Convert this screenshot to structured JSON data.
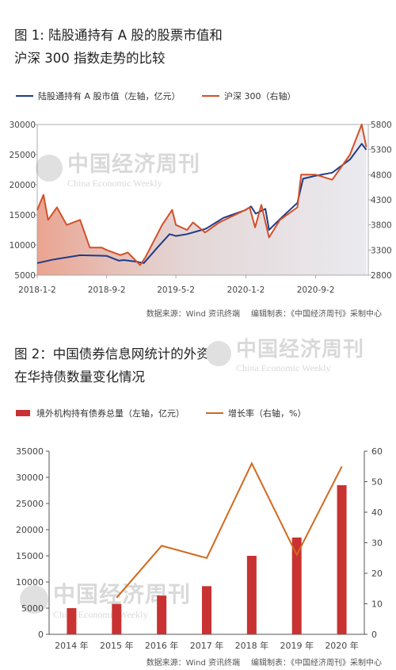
{
  "chart_data": [
    {
      "type": "line",
      "title_lines": [
        "图 1: 陆股通持有 A 股的股票市值和",
        "沪深 300 指数走势的比较"
      ],
      "series": [
        {
          "name": "陆股通持有 A 股市值（左轴，亿元）",
          "axis": "left",
          "color": "#1f3c88",
          "points": [
            [
              "2018-01-02",
              7000
            ],
            [
              "2018-03-01",
              7600
            ],
            [
              "2018-06-01",
              8300
            ],
            [
              "2018-09-02",
              8200
            ],
            [
              "2018-10-15",
              7400
            ],
            [
              "2018-11-01",
              7500
            ],
            [
              "2018-12-20",
              7200
            ],
            [
              "2019-01-10",
              7000
            ],
            [
              "2019-02-25",
              9500
            ],
            [
              "2019-04-10",
              11800
            ],
            [
              "2019-05-02",
              11500
            ],
            [
              "2019-06-10",
              11800
            ],
            [
              "2019-08-15",
              12700
            ],
            [
              "2019-10-15",
              14500
            ],
            [
              "2019-12-31",
              15800
            ],
            [
              "2020-01-20",
              16400
            ],
            [
              "2020-02-05",
              15200
            ],
            [
              "2020-03-10",
              16000
            ],
            [
              "2020-03-23",
              12500
            ],
            [
              "2020-04-30",
              14300
            ],
            [
              "2020-06-30",
              17000
            ],
            [
              "2020-07-20",
              21000
            ],
            [
              "2020-09-02",
              21500
            ],
            [
              "2020-10-30",
              22000
            ],
            [
              "2020-12-31",
              24200
            ],
            [
              "2021-02-10",
              26800
            ],
            [
              "2021-02-26",
              25800
            ]
          ]
        },
        {
          "name": "沪深 300（右轴）",
          "axis": "right",
          "color": "#d2502a",
          "points": [
            [
              "2018-01-02",
              4100
            ],
            [
              "2018-01-24",
              4400
            ],
            [
              "2018-02-09",
              3900
            ],
            [
              "2018-03-12",
              4150
            ],
            [
              "2018-04-15",
              3800
            ],
            [
              "2018-06-01",
              3900
            ],
            [
              "2018-07-05",
              3350
            ],
            [
              "2018-08-15",
              3350
            ],
            [
              "2018-09-02",
              3300
            ],
            [
              "2018-10-20",
              3200
            ],
            [
              "2018-11-15",
              3250
            ],
            [
              "2018-12-28",
              3000
            ],
            [
              "2019-01-15",
              3150
            ],
            [
              "2019-03-15",
              3800
            ],
            [
              "2019-04-19",
              4100
            ],
            [
              "2019-05-02",
              3800
            ],
            [
              "2019-06-10",
              3700
            ],
            [
              "2019-07-01",
              3850
            ],
            [
              "2019-08-12",
              3650
            ],
            [
              "2019-10-01",
              3850
            ],
            [
              "2019-12-31",
              4100
            ],
            [
              "2020-01-15",
              4150
            ],
            [
              "2020-02-03",
              3750
            ],
            [
              "2020-02-25",
              4200
            ],
            [
              "2020-03-23",
              3550
            ],
            [
              "2020-04-30",
              3900
            ],
            [
              "2020-06-30",
              4150
            ],
            [
              "2020-07-13",
              4800
            ],
            [
              "2020-09-02",
              4800
            ],
            [
              "2020-10-30",
              4700
            ],
            [
              "2020-12-31",
              5200
            ],
            [
              "2021-02-10",
              5800
            ],
            [
              "2021-02-26",
              5350
            ]
          ]
        }
      ],
      "left_axis": {
        "min": 5000,
        "max": 30000,
        "ticks": [
          5000,
          10000,
          15000,
          20000,
          25000,
          30000
        ]
      },
      "right_axis": {
        "min": 2800,
        "max": 5800,
        "ticks": [
          2800,
          3300,
          3800,
          4300,
          4800,
          5300,
          5800
        ]
      },
      "x_range": [
        "2018-01-02",
        "2021-03-05"
      ],
      "x_ticks": [
        "2018-1-2",
        "2018-9-2",
        "2019-5-2",
        "2020-1-2",
        "2020-9-2"
      ],
      "x_tick_dates": [
        "2018-01-02",
        "2018-09-02",
        "2019-05-02",
        "2020-01-02",
        "2020-09-02"
      ],
      "source": {
        "data": "数据来源：Wind 资讯终端",
        "editor": "编辑制表：《中国经济周刊》采制中心"
      }
    },
    {
      "type": "bar",
      "title_lines": [
        "图 2：中国债券信息网统计的外资",
        "在华持债数量变化情况"
      ],
      "categories": [
        "2014 年",
        "2015 年",
        "2016 年",
        "2017 年",
        "2018 年",
        "2019 年",
        "2020 年"
      ],
      "series": [
        {
          "name": "境外机构持有债券总量（左轴，亿元）",
          "type": "bar",
          "axis": "left",
          "color": "#c83232",
          "values": [
            5000,
            5800,
            7400,
            9200,
            15000,
            18500,
            28500
          ]
        },
        {
          "name": "增长率（右轴，%）",
          "type": "line",
          "axis": "right",
          "color": "#d2691e",
          "values": [
            null,
            12,
            29,
            25,
            56,
            26,
            55
          ]
        }
      ],
      "left_axis": {
        "min": 0,
        "max": 35000,
        "ticks": [
          0,
          5000,
          10000,
          15000,
          20000,
          25000,
          30000,
          35000
        ]
      },
      "right_axis": {
        "min": 0,
        "max": 60,
        "ticks": [
          0,
          10,
          20,
          30,
          40,
          50,
          60
        ]
      },
      "source": {
        "data": "数据来源：Wind 资讯终端",
        "editor": "编辑制表：《中国经济周刊》采制中心"
      }
    }
  ],
  "watermark": {
    "cn": "中国经济周刊",
    "en": "China Economic Weekly"
  },
  "colors": {
    "chart1_fill_top": "#dcdce4",
    "chart1_fill_bottom": "#e89a84",
    "axis_text": "#444444"
  }
}
